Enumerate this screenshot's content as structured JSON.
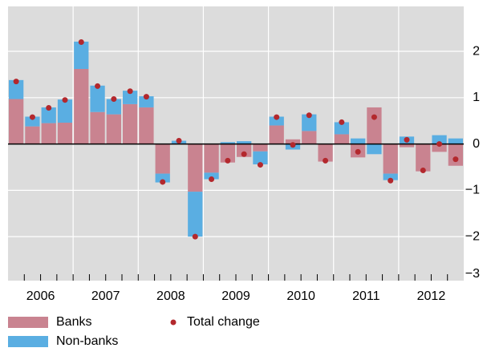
{
  "chart_data": {
    "type": "stacked-bar-dot",
    "categories": [
      null,
      null,
      null,
      null,
      null,
      null,
      null,
      null,
      null,
      null,
      null,
      null,
      null,
      null,
      null,
      null,
      null,
      null,
      null,
      null,
      null,
      null,
      null,
      null,
      null,
      null,
      null,
      null
    ],
    "year_labels": [
      "2006",
      "2007",
      "2008",
      "2009",
      "2010",
      "2011",
      "2012"
    ],
    "series": [
      {
        "name": "Banks",
        "color": "#c98390",
        "values": [
          0.97,
          0.38,
          0.45,
          0.46,
          1.62,
          0.69,
          0.64,
          0.86,
          0.79,
          -0.64,
          0,
          -1.03,
          -0.62,
          -0.4,
          -0.28,
          -0.16,
          0.4,
          0.1,
          0.28,
          -0.38,
          0.21,
          -0.29,
          0.79,
          -0.64,
          -0.07,
          -0.59,
          -0.17,
          -0.47
        ]
      },
      {
        "name": "Non-banks",
        "color": "#5aaee2",
        "values": [
          0.41,
          0.21,
          0.34,
          0.5,
          0.59,
          0.57,
          0.33,
          0.29,
          0.24,
          -0.19,
          0.07,
          -0.97,
          -0.14,
          0.04,
          0.06,
          -0.28,
          0.19,
          -0.12,
          0.36,
          0,
          0.26,
          0.12,
          -0.22,
          -0.14,
          0.16,
          0,
          0.19,
          0.12
        ]
      },
      {
        "name": "Total change",
        "type": "dot",
        "color": "#b3282d",
        "values": [
          1.35,
          0.58,
          0.78,
          0.95,
          2.2,
          1.25,
          0.97,
          1.14,
          1.02,
          -0.82,
          0.07,
          -2.0,
          -0.76,
          -0.36,
          -0.22,
          -0.45,
          0.58,
          -0.02,
          0.62,
          -0.36,
          0.47,
          -0.17,
          0.58,
          -0.79,
          0.09,
          -0.57,
          0.0,
          -0.33
        ]
      }
    ],
    "ylim": [
      -2.95,
      2.97
    ],
    "yticks": [
      2,
      1,
      0,
      {
        "value": -1,
        "label": "−1"
      },
      {
        "value": -2,
        "label": "−2"
      },
      {
        "value": -3,
        "label": "−3"
      }
    ],
    "grid": true
  }
}
